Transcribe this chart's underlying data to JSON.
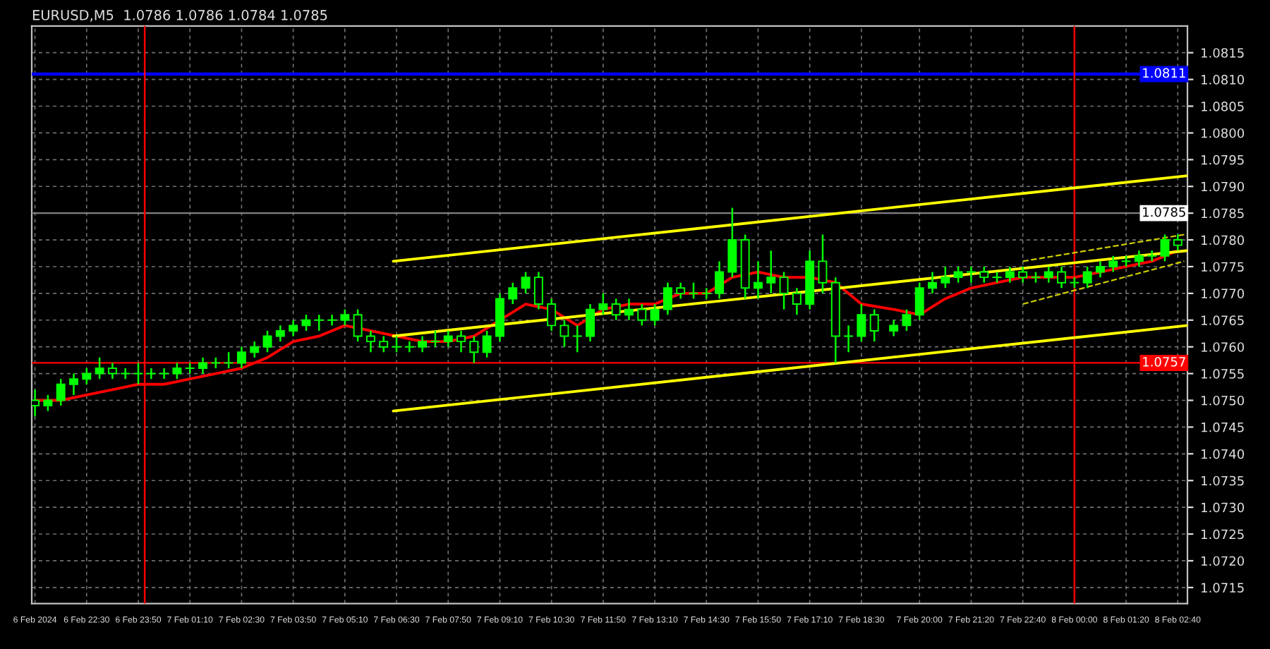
{
  "chart_data": {
    "type": "candlestick",
    "title": "EURUSD,M5  1.0786 1.0786 1.0784 1.0785",
    "color": "#00ff00",
    "x": [
      "2024-02-06T21:10",
      "2024-02-06T21:30",
      "2024-02-06T21:50",
      "2024-02-06T22:10",
      "2024-02-06T22:30",
      "2024-02-06T22:50",
      "2024-02-06T23:10",
      "2024-02-06T23:30",
      "2024-02-06T23:50",
      "2024-02-07T00:10",
      "2024-02-07T00:30",
      "2024-02-07T00:50",
      "2024-02-07T01:10",
      "2024-02-07T01:30",
      "2024-02-07T01:50",
      "2024-02-07T02:10",
      "2024-02-07T02:30",
      "2024-02-07T02:50",
      "2024-02-07T03:10",
      "2024-02-07T03:30",
      "2024-02-07T03:50",
      "2024-02-07T04:10",
      "2024-02-07T04:30",
      "2024-02-07T04:50",
      "2024-02-07T05:10",
      "2024-02-07T05:30",
      "2024-02-07T05:50",
      "2024-02-07T06:10",
      "2024-02-07T06:30",
      "2024-02-07T06:50",
      "2024-02-07T07:10",
      "2024-02-07T07:30",
      "2024-02-07T07:50",
      "2024-02-07T08:10",
      "2024-02-07T08:30",
      "2024-02-07T08:50",
      "2024-02-07T09:10",
      "2024-02-07T09:30",
      "2024-02-07T09:50",
      "2024-02-07T10:10",
      "2024-02-07T10:30",
      "2024-02-07T10:50",
      "2024-02-07T11:10",
      "2024-02-07T11:30",
      "2024-02-07T11:50",
      "2024-02-07T12:10",
      "2024-02-07T12:30",
      "2024-02-07T12:50",
      "2024-02-07T13:10",
      "2024-02-07T13:30",
      "2024-02-07T13:50",
      "2024-02-07T14:10",
      "2024-02-07T14:30",
      "2024-02-07T14:50",
      "2024-02-07T15:10",
      "2024-02-07T15:30",
      "2024-02-07T15:50",
      "2024-02-07T16:10",
      "2024-02-07T16:30",
      "2024-02-07T16:50",
      "2024-02-07T17:10",
      "2024-02-07T17:30",
      "2024-02-07T17:50",
      "2024-02-07T18:10",
      "2024-02-07T18:30",
      "2024-02-07T18:50",
      "2024-02-07T19:20",
      "2024-02-07T19:40",
      "2024-02-07T20:00",
      "2024-02-07T20:20",
      "2024-02-07T20:40",
      "2024-02-07T21:00",
      "2024-02-07T21:20",
      "2024-02-07T21:40",
      "2024-02-07T22:00",
      "2024-02-07T22:20",
      "2024-02-07T22:40",
      "2024-02-07T23:00",
      "2024-02-07T23:20",
      "2024-02-07T23:40",
      "2024-02-08T00:00",
      "2024-02-08T00:20",
      "2024-02-08T00:40",
      "2024-02-08T01:00",
      "2024-02-08T01:20",
      "2024-02-08T01:40",
      "2024-02-08T02:00",
      "2024-02-08T02:20",
      "2024-02-08T02:40"
    ],
    "ohlc": [
      [
        1.075,
        1.0752,
        1.0747,
        1.0749
      ],
      [
        1.0749,
        1.0751,
        1.0748,
        1.075
      ],
      [
        1.075,
        1.0754,
        1.0749,
        1.0753
      ],
      [
        1.0753,
        1.0755,
        1.0751,
        1.0754
      ],
      [
        1.0754,
        1.0756,
        1.0753,
        1.0755
      ],
      [
        1.0755,
        1.0758,
        1.0754,
        1.0756
      ],
      [
        1.0756,
        1.0757,
        1.0754,
        1.0755
      ],
      [
        1.0755,
        1.0756,
        1.0754,
        1.0755
      ],
      [
        1.0755,
        1.0757,
        1.0753,
        1.0755
      ],
      [
        1.0755,
        1.0756,
        1.0754,
        1.0755
      ],
      [
        1.0755,
        1.0756,
        1.0754,
        1.0755
      ],
      [
        1.0755,
        1.0757,
        1.0754,
        1.0756
      ],
      [
        1.0756,
        1.0757,
        1.0755,
        1.0756
      ],
      [
        1.0756,
        1.0758,
        1.0755,
        1.0757
      ],
      [
        1.0757,
        1.0758,
        1.0756,
        1.0757
      ],
      [
        1.0757,
        1.0759,
        1.0756,
        1.0757
      ],
      [
        1.0757,
        1.076,
        1.0756,
        1.0759
      ],
      [
        1.0759,
        1.0761,
        1.0758,
        1.076
      ],
      [
        1.076,
        1.0763,
        1.0759,
        1.0762
      ],
      [
        1.0762,
        1.0764,
        1.0761,
        1.0763
      ],
      [
        1.0763,
        1.0765,
        1.0762,
        1.0764
      ],
      [
        1.0764,
        1.0766,
        1.0763,
        1.0765
      ],
      [
        1.0765,
        1.0766,
        1.0763,
        1.0765
      ],
      [
        1.0765,
        1.0766,
        1.0764,
        1.0765
      ],
      [
        1.0765,
        1.0767,
        1.0764,
        1.0766
      ],
      [
        1.0766,
        1.0767,
        1.0761,
        1.0762
      ],
      [
        1.0762,
        1.0763,
        1.0759,
        1.0761
      ],
      [
        1.0761,
        1.0762,
        1.0759,
        1.076
      ],
      [
        1.076,
        1.0762,
        1.0759,
        1.076
      ],
      [
        1.076,
        1.0761,
        1.0759,
        1.076
      ],
      [
        1.076,
        1.0762,
        1.0759,
        1.0761
      ],
      [
        1.0761,
        1.0763,
        1.076,
        1.0761
      ],
      [
        1.0761,
        1.0763,
        1.076,
        1.0762
      ],
      [
        1.0762,
        1.0763,
        1.0759,
        1.0761
      ],
      [
        1.0761,
        1.0762,
        1.0757,
        1.0759
      ],
      [
        1.0759,
        1.0763,
        1.0758,
        1.0762
      ],
      [
        1.0762,
        1.077,
        1.0761,
        1.0769
      ],
      [
        1.0769,
        1.0772,
        1.0768,
        1.0771
      ],
      [
        1.0771,
        1.0774,
        1.077,
        1.0773
      ],
      [
        1.0773,
        1.0774,
        1.0767,
        1.0768
      ],
      [
        1.0768,
        1.0769,
        1.0763,
        1.0764
      ],
      [
        1.0764,
        1.0765,
        1.076,
        1.0762
      ],
      [
        1.0762,
        1.0764,
        1.0759,
        1.0762
      ],
      [
        1.0762,
        1.0768,
        1.0761,
        1.0767
      ],
      [
        1.0767,
        1.077,
        1.0766,
        1.0768
      ],
      [
        1.0768,
        1.0769,
        1.0765,
        1.0766
      ],
      [
        1.0766,
        1.0769,
        1.0765,
        1.0767
      ],
      [
        1.0767,
        1.0768,
        1.0764,
        1.0765
      ],
      [
        1.0765,
        1.0768,
        1.0764,
        1.0767
      ],
      [
        1.0767,
        1.0772,
        1.0766,
        1.0771
      ],
      [
        1.0771,
        1.0772,
        1.0769,
        1.077
      ],
      [
        1.077,
        1.0772,
        1.0769,
        1.077
      ],
      [
        1.077,
        1.0771,
        1.0769,
        1.077
      ],
      [
        1.077,
        1.0776,
        1.0769,
        1.0774
      ],
      [
        1.0774,
        1.0786,
        1.0773,
        1.078
      ],
      [
        1.078,
        1.0781,
        1.0769,
        1.0771
      ],
      [
        1.0771,
        1.0776,
        1.0769,
        1.0772
      ],
      [
        1.0772,
        1.0778,
        1.077,
        1.0773
      ],
      [
        1.0773,
        1.0774,
        1.0767,
        1.077
      ],
      [
        1.077,
        1.0771,
        1.0766,
        1.0768
      ],
      [
        1.0768,
        1.0778,
        1.0767,
        1.0776
      ],
      [
        1.0776,
        1.0781,
        1.077,
        1.0772
      ],
      [
        1.0772,
        1.0773,
        1.0757,
        1.0762
      ],
      [
        1.0762,
        1.0764,
        1.0759,
        1.0762
      ],
      [
        1.0762,
        1.0768,
        1.0761,
        1.0766
      ],
      [
        1.0766,
        1.0767,
        1.0761,
        1.0763
      ],
      [
        1.0763,
        1.0765,
        1.0762,
        1.0764
      ],
      [
        1.0764,
        1.0767,
        1.0763,
        1.0766
      ],
      [
        1.0766,
        1.0772,
        1.0765,
        1.0771
      ],
      [
        1.0771,
        1.0774,
        1.077,
        1.0772
      ],
      [
        1.0772,
        1.0775,
        1.0771,
        1.0773
      ],
      [
        1.0773,
        1.0775,
        1.0772,
        1.0774
      ],
      [
        1.0774,
        1.0775,
        1.0772,
        1.0774
      ],
      [
        1.0774,
        1.0775,
        1.0772,
        1.0773
      ],
      [
        1.0773,
        1.0774,
        1.0772,
        1.0773
      ],
      [
        1.0773,
        1.0775,
        1.0772,
        1.0774
      ],
      [
        1.0774,
        1.0775,
        1.0772,
        1.0773
      ],
      [
        1.0773,
        1.0774,
        1.0772,
        1.0773
      ],
      [
        1.0773,
        1.0775,
        1.0772,
        1.0774
      ],
      [
        1.0774,
        1.0775,
        1.0771,
        1.0772
      ],
      [
        1.0772,
        1.0773,
        1.0771,
        1.0772
      ],
      [
        1.0772,
        1.0775,
        1.0771,
        1.0774
      ],
      [
        1.0774,
        1.0776,
        1.0773,
        1.0775
      ],
      [
        1.0775,
        1.0777,
        1.0774,
        1.0776
      ],
      [
        1.0776,
        1.0777,
        1.0775,
        1.0776
      ],
      [
        1.0776,
        1.0778,
        1.0775,
        1.0777
      ],
      [
        1.0777,
        1.0778,
        1.0776,
        1.0777
      ],
      [
        1.0777,
        1.0781,
        1.0776,
        1.078
      ],
      [
        1.078,
        1.0781,
        1.0778,
        1.0779
      ]
    ],
    "series": [
      {
        "type": "line",
        "color": "#ff0000",
        "x": [
          "2024-02-06T21:10",
          "2024-02-06T21:50",
          "2024-02-06T22:30",
          "2024-02-06T23:10",
          "2024-02-06T23:50",
          "2024-02-07T00:30",
          "2024-02-07T01:10",
          "2024-02-07T01:50",
          "2024-02-07T02:30",
          "2024-02-07T03:10",
          "2024-02-07T03:50",
          "2024-02-07T04:30",
          "2024-02-07T05:10",
          "2024-02-07T05:50",
          "2024-02-07T06:30",
          "2024-02-07T07:10",
          "2024-02-07T07:50",
          "2024-02-07T08:30",
          "2024-02-07T09:10",
          "2024-02-07T09:50",
          "2024-02-07T10:30",
          "2024-02-07T11:10",
          "2024-02-07T11:50",
          "2024-02-07T12:30",
          "2024-02-07T13:10",
          "2024-02-07T13:50",
          "2024-02-07T14:30",
          "2024-02-07T15:10",
          "2024-02-07T15:50",
          "2024-02-07T16:30",
          "2024-02-07T17:10",
          "2024-02-07T17:50",
          "2024-02-07T18:30",
          "2024-02-07T19:20",
          "2024-02-07T20:00",
          "2024-02-07T20:40",
          "2024-02-07T21:20",
          "2024-02-07T22:00",
          "2024-02-07T22:40",
          "2024-02-07T23:20",
          "2024-02-08T00:00",
          "2024-02-08T00:40",
          "2024-02-08T01:20",
          "2024-02-08T02:00",
          "2024-02-08T02:40"
        ],
        "values": [
          1.075,
          1.075,
          1.0751,
          1.0752,
          1.0753,
          1.0753,
          1.0754,
          1.0755,
          1.0756,
          1.0758,
          1.0761,
          1.0762,
          1.0764,
          1.0763,
          1.0762,
          1.0761,
          1.0761,
          1.0762,
          1.0765,
          1.0768,
          1.0767,
          1.0764,
          1.0767,
          1.0768,
          1.0768,
          1.077,
          1.077,
          1.0773,
          1.0774,
          1.0773,
          1.0773,
          1.0772,
          1.0768,
          1.0767,
          1.0766,
          1.0769,
          1.0771,
          1.0772,
          1.0773,
          1.0773,
          1.0773,
          1.0774,
          1.0775,
          1.0776,
          1.0778
        ]
      },
      {
        "type": "line",
        "color": "#ffff00",
        "x": [
          "2024-02-07T06:25",
          "2024-02-08T02:55"
        ],
        "values": [
          1.0776,
          1.0792
        ]
      },
      {
        "type": "line",
        "color": "#ffff00",
        "x": [
          "2024-02-07T06:25",
          "2024-02-08T02:55"
        ],
        "values": [
          1.0762,
          1.0778
        ]
      },
      {
        "type": "line",
        "color": "#ffff00",
        "x": [
          "2024-02-07T06:25",
          "2024-02-08T02:55"
        ],
        "values": [
          1.0748,
          1.0764
        ]
      },
      {
        "type": "line",
        "color": "#cccc00",
        "line_style": "dashed",
        "x": [
          "2024-02-07T22:40",
          "2024-02-08T02:50"
        ],
        "values": [
          1.0776,
          1.0781
        ]
      },
      {
        "type": "line",
        "color": "#cccc00",
        "line_style": "dashed",
        "x": [
          "2024-02-07T22:40",
          "2024-02-08T02:50"
        ],
        "values": [
          1.0768,
          1.0776
        ]
      }
    ],
    "ref_lines": [
      {
        "axis": "y",
        "value": 1.0811,
        "label": "1.0811",
        "color": "#0000ff"
      },
      {
        "axis": "y",
        "value": 1.0785,
        "label": "1.0785",
        "color": "#808080"
      },
      {
        "axis": "y",
        "value": 1.0757,
        "label": "1.0757",
        "color": "#ff0000"
      },
      {
        "axis": "x",
        "value": "2024-02-07T00:00",
        "color": "#ff0000"
      },
      {
        "axis": "x",
        "value": "2024-02-08T00:00",
        "color": "#ff0000"
      }
    ],
    "xlim": [
      "2024-02-06T21:05",
      "2024-02-08T02:55"
    ],
    "xticks": [
      {
        "value": "2024-02-06T21:10",
        "label": "6 Feb 2024"
      },
      {
        "value": "2024-02-06T22:30",
        "label": "6 Feb 22:30"
      },
      {
        "value": "2024-02-06T23:50",
        "label": "6 Feb 23:50"
      },
      {
        "value": "2024-02-07T01:10",
        "label": "7 Feb 01:10"
      },
      {
        "value": "2024-02-07T02:30",
        "label": "7 Feb 02:30"
      },
      {
        "value": "2024-02-07T03:50",
        "label": "7 Feb 03:50"
      },
      {
        "value": "2024-02-07T05:10",
        "label": "7 Feb 05:10"
      },
      {
        "value": "2024-02-07T06:30",
        "label": "7 Feb 06:30"
      },
      {
        "value": "2024-02-07T07:50",
        "label": "7 Feb 07:50"
      },
      {
        "value": "2024-02-07T09:10",
        "label": "7 Feb 09:10"
      },
      {
        "value": "2024-02-07T10:30",
        "label": "7 Feb 10:30"
      },
      {
        "value": "2024-02-07T11:50",
        "label": "7 Feb 11:50"
      },
      {
        "value": "2024-02-07T13:10",
        "label": "7 Feb 13:10"
      },
      {
        "value": "2024-02-07T14:30",
        "label": "7 Feb 14:30"
      },
      {
        "value": "2024-02-07T15:50",
        "label": "7 Feb 15:50"
      },
      {
        "value": "2024-02-07T17:10",
        "label": "7 Feb 17:10"
      },
      {
        "value": "2024-02-07T18:30",
        "label": "7 Feb 18:30"
      },
      {
        "value": "2024-02-07T20:00",
        "label": "7 Feb 20:00"
      },
      {
        "value": "2024-02-07T21:20",
        "label": "7 Feb 21:20"
      },
      {
        "value": "2024-02-07T22:40",
        "label": "7 Feb 22:40"
      },
      {
        "value": "2024-02-08T00:00",
        "label": "8 Feb 00:00"
      },
      {
        "value": "2024-02-08T01:20",
        "label": "8 Feb 01:20"
      },
      {
        "value": "2024-02-08T02:40",
        "label": "8 Feb 02:40"
      }
    ],
    "ylim": [
      1.0712,
      1.082
    ],
    "yticks": [
      {
        "value": 1.0715,
        "label": "1.0715"
      },
      {
        "value": 1.072,
        "label": "1.0720"
      },
      {
        "value": 1.0725,
        "label": "1.0725"
      },
      {
        "value": 1.073,
        "label": "1.0730"
      },
      {
        "value": 1.0735,
        "label": "1.0735"
      },
      {
        "value": 1.074,
        "label": "1.0740"
      },
      {
        "value": 1.0745,
        "label": "1.0745"
      },
      {
        "value": 1.075,
        "label": "1.0750"
      },
      {
        "value": 1.0755,
        "label": "1.0755"
      },
      {
        "value": 1.076,
        "label": "1.0760"
      },
      {
        "value": 1.0765,
        "label": "1.0765"
      },
      {
        "value": 1.077,
        "label": "1.0770"
      },
      {
        "value": 1.0775,
        "label": "1.0775"
      },
      {
        "value": 1.078,
        "label": "1.0780"
      },
      {
        "value": 1.0785,
        "label": "1.0785"
      },
      {
        "value": 1.079,
        "label": "1.0790"
      },
      {
        "value": 1.0795,
        "label": "1.0795"
      },
      {
        "value": 1.08,
        "label": "1.0800"
      },
      {
        "value": 1.0805,
        "label": "1.0805"
      },
      {
        "value": 1.081,
        "label": "1.0810"
      },
      {
        "value": 1.0815,
        "label": "1.0815"
      }
    ],
    "grid": true
  }
}
